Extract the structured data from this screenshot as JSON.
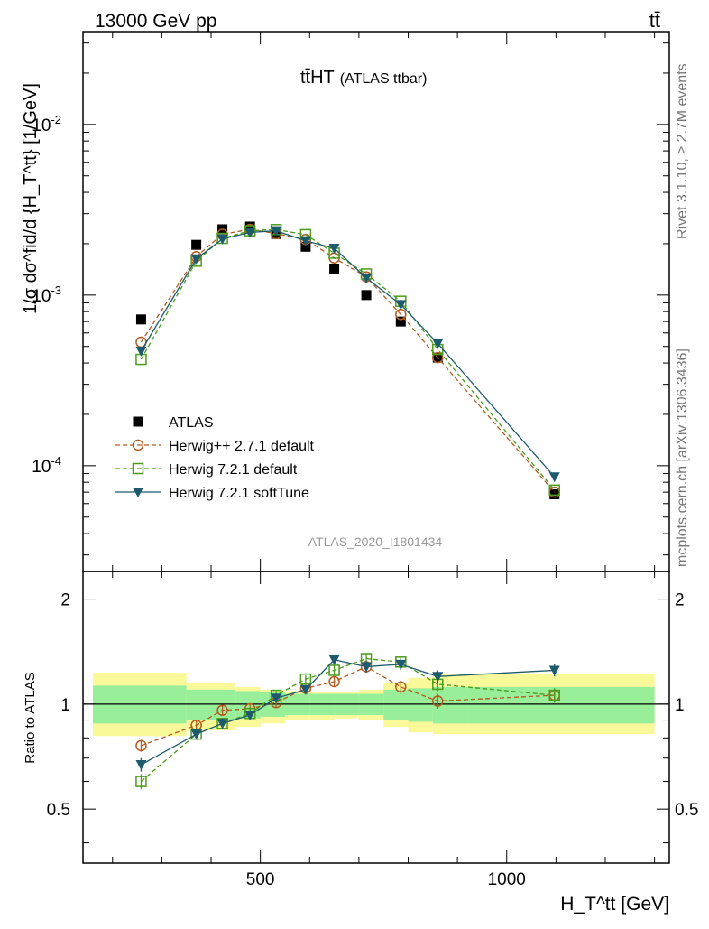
{
  "header": {
    "left": "13000 GeV pp",
    "right": "tt̄"
  },
  "side_labels": {
    "rivet": "Rivet 3.1.10, ≥ 2.7M events",
    "mcplots": "mcplots.cern.ch [arXiv:1306.3436]"
  },
  "colors": {
    "data": "#000000",
    "herwigpp": "#b35a1f",
    "herwig721": "#4a9c1a",
    "softtune": "#1d5a6e",
    "band_inner": "#99ef99",
    "band_outer": "#f9f99a"
  },
  "chart_data": {
    "type": "scatter",
    "title": "tt̄HT (ATLAS ttbar)",
    "title_main": "tt̄HT",
    "title_sub": "(ATLAS ttbar)",
    "analysis": "ATLAS_2020_I1801434",
    "xlabel": "H_T^tt [GeV]",
    "xlim": [
      140,
      1330
    ],
    "x_ticks": [
      500,
      1000
    ],
    "x_tick_labels": [
      "500",
      "1000"
    ],
    "main": {
      "ylabel": "1/σ dσ^fid/d {H_T^tt} [1/GeV]",
      "yscale": "log",
      "ylim": [
        2.4e-05,
        0.035
      ],
      "y_ticks": [
        0.0001,
        0.001,
        0.01
      ],
      "y_tick_labels": [
        "10^-4",
        "10^-3",
        "10^-2"
      ]
    },
    "ratio": {
      "ylabel": "Ratio to ATLAS",
      "ylim": [
        0.35,
        2.4
      ],
      "y_ticks": [
        0.5,
        1,
        2
      ],
      "y_tick_labels": [
        "0.5",
        "1",
        "2"
      ],
      "band_x_edges": [
        160,
        350,
        400,
        450,
        500,
        550,
        600,
        650,
        700,
        750,
        800,
        850,
        920,
        1300
      ],
      "band_inner_lo": [
        0.88,
        0.9,
        0.9,
        0.91,
        0.92,
        0.93,
        0.93,
        0.93,
        0.93,
        0.9,
        0.89,
        0.88,
        0.88
      ],
      "band_inner_hi": [
        1.13,
        1.1,
        1.1,
        1.09,
        1.08,
        1.07,
        1.07,
        1.07,
        1.07,
        1.1,
        1.11,
        1.12,
        1.12
      ],
      "band_outer_lo": [
        0.81,
        0.84,
        0.84,
        0.86,
        0.88,
        0.9,
        0.9,
        0.91,
        0.9,
        0.86,
        0.83,
        0.82,
        0.82
      ],
      "band_outer_hi": [
        1.23,
        1.15,
        1.15,
        1.12,
        1.1,
        1.09,
        1.08,
        1.08,
        1.1,
        1.15,
        1.19,
        1.22,
        1.22
      ]
    },
    "x": [
      258,
      370,
      423,
      479,
      532,
      592,
      650,
      715,
      785,
      860,
      1097
    ],
    "series": [
      {
        "name": "ATLAS",
        "marker": "square",
        "style": "data",
        "values": [
          0.00072,
          0.00197,
          0.00243,
          0.00252,
          0.00228,
          0.00192,
          0.00143,
          0.001,
          0.0007,
          0.00043,
          6.8e-05
        ],
        "ratio": [
          1,
          1,
          1,
          1,
          1,
          1,
          1,
          1,
          1,
          1,
          1
        ]
      },
      {
        "name": "Herwig++ 2.7.1 default",
        "marker": "circle",
        "style": "dashed",
        "values": [
          0.00053,
          0.00168,
          0.00227,
          0.00243,
          0.00229,
          0.00212,
          0.00165,
          0.00128,
          0.00077,
          0.00043,
          7e-05
        ],
        "ratio": [
          0.76,
          0.87,
          0.96,
          0.97,
          1.01,
          1.11,
          1.16,
          1.28,
          1.12,
          1.02,
          1.06
        ],
        "ratio_err": [
          0.03,
          0.03,
          0.03,
          0.03,
          0.03,
          0.03,
          0.04,
          0.05,
          0.05,
          0.05,
          0.05
        ]
      },
      {
        "name": "Herwig 7.2.1 default",
        "marker": "open-square",
        "style": "dashed",
        "values": [
          0.00042,
          0.00158,
          0.00215,
          0.00238,
          0.00242,
          0.00226,
          0.00176,
          0.00133,
          0.00092,
          0.00048,
          7.2e-05
        ],
        "ratio": [
          0.6,
          0.82,
          0.88,
          0.94,
          1.06,
          1.18,
          1.25,
          1.35,
          1.32,
          1.14,
          1.06
        ],
        "ratio_err": [
          0.03,
          0.03,
          0.03,
          0.03,
          0.03,
          0.03,
          0.04,
          0.05,
          0.05,
          0.05,
          0.05
        ]
      },
      {
        "name": "Herwig 7.2.1 softTune",
        "marker": "triangle-down",
        "style": "solid",
        "values": [
          0.00047,
          0.00163,
          0.00213,
          0.00233,
          0.00238,
          0.00208,
          0.00188,
          0.00126,
          0.00088,
          0.00052,
          8.6e-05
        ],
        "ratio": [
          0.67,
          0.82,
          0.88,
          0.93,
          1.04,
          1.1,
          1.34,
          1.28,
          1.3,
          1.2,
          1.25
        ],
        "ratio_err": [
          0.03,
          0.03,
          0.03,
          0.03,
          0.03,
          0.03,
          0.04,
          0.05,
          0.05,
          0.05,
          0.05
        ]
      }
    ]
  }
}
